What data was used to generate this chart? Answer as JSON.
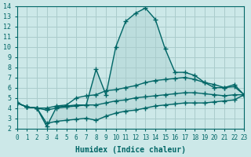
{
  "xlabel": "Humidex (Indice chaleur)",
  "ylabel": "",
  "xlim": [
    0,
    23
  ],
  "ylim": [
    2,
    14
  ],
  "xticks": [
    0,
    1,
    2,
    3,
    4,
    5,
    6,
    7,
    8,
    9,
    10,
    11,
    12,
    13,
    14,
    15,
    16,
    17,
    18,
    19,
    20,
    21,
    22,
    23
  ],
  "yticks": [
    2,
    3,
    4,
    5,
    6,
    7,
    8,
    9,
    10,
    11,
    12,
    13,
    14
  ],
  "bg_color": "#cce8e8",
  "grid_color": "#aacccc",
  "line_color": "#006666",
  "series": {
    "max": [
      4.5,
      4.1,
      4.0,
      2.2,
      4.1,
      4.2,
      4.3,
      4.3,
      7.8,
      5.3,
      10.0,
      12.5,
      13.3,
      13.8,
      12.7,
      9.8,
      7.5,
      7.5,
      7.2,
      6.5,
      6.0,
      6.0,
      6.3,
      5.3
    ],
    "avg": [
      4.5,
      4.1,
      4.0,
      4.0,
      4.2,
      4.3,
      5.0,
      5.2,
      5.3,
      5.7,
      5.8,
      6.0,
      6.2,
      6.5,
      6.7,
      6.8,
      6.9,
      7.0,
      6.8,
      6.5,
      6.3,
      6.0,
      6.1,
      5.3
    ],
    "min": [
      4.5,
      4.1,
      4.0,
      2.5,
      2.7,
      2.8,
      2.9,
      3.0,
      2.8,
      3.2,
      3.5,
      3.7,
      3.8,
      4.0,
      4.2,
      4.3,
      4.4,
      4.5,
      4.5,
      4.5,
      4.6,
      4.7,
      4.8,
      5.3
    ],
    "flat": [
      4.5,
      4.1,
      4.0,
      3.8,
      4.0,
      4.1,
      4.2,
      4.3,
      4.3,
      4.5,
      4.7,
      4.8,
      5.0,
      5.1,
      5.2,
      5.3,
      5.4,
      5.5,
      5.5,
      5.4,
      5.3,
      5.2,
      5.3,
      5.3
    ]
  }
}
